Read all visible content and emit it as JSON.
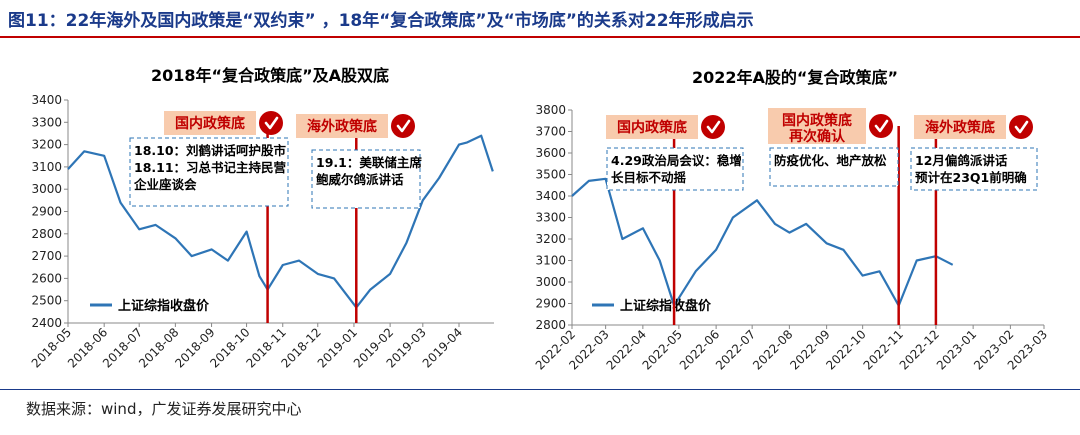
{
  "figure": {
    "title": "图11：22年海外及国内政策是“双约束” ，18年“复合政策底”及“市场底”的关系对22年形成启示",
    "source": "数据来源：wind，广发证券发展研究中心"
  },
  "colors": {
    "line": "#2e75b6",
    "marker": "#c00000",
    "label_bg": "#f8cbad",
    "label_text": "#c00000",
    "title": "#1a3a8a"
  },
  "icons": [
    "check-circle-icon"
  ],
  "chart_data": [
    {
      "type": "line",
      "title": "2018年“复合政策底”及A股双底",
      "series": [
        {
          "name": "上证综指收盘价",
          "x": [
            "2018-05-01",
            "2018-05-15",
            "2018-06-01",
            "2018-06-15",
            "2018-07-01",
            "2018-07-15",
            "2018-08-01",
            "2018-08-15",
            "2018-09-01",
            "2018-09-15",
            "2018-10-01",
            "2018-10-12",
            "2018-10-19",
            "2018-11-01",
            "2018-11-15",
            "2018-12-01",
            "2018-12-15",
            "2019-01-03",
            "2019-01-15",
            "2019-02-01",
            "2019-02-15",
            "2019-03-01",
            "2019-03-15",
            "2019-04-01",
            "2019-04-08",
            "2019-04-20",
            "2019-04-30"
          ],
          "y": [
            3090,
            3170,
            3150,
            2940,
            2820,
            2840,
            2780,
            2700,
            2730,
            2680,
            2810,
            2610,
            2550,
            2660,
            2680,
            2620,
            2600,
            2470,
            2550,
            2620,
            2760,
            2950,
            3050,
            3200,
            3210,
            3240,
            3080
          ]
        }
      ],
      "yticks": [
        2400,
        2500,
        2600,
        2700,
        2800,
        2900,
        3000,
        3100,
        3200,
        3300,
        3400
      ],
      "xticks": [
        "2018-05",
        "2018-06",
        "2018-07",
        "2018-08",
        "2018-09",
        "2018-10",
        "2018-11",
        "2018-12",
        "2019-01",
        "2019-02",
        "2019-03",
        "2019-04"
      ],
      "ylim": [
        2400,
        3400
      ],
      "events": [
        {
          "label": "国内政策底",
          "date": "2018-10-19",
          "note_lines": [
            "18.10：刘鹤讲话呵护股市",
            "18.11：习总书记主持民营",
            "企业座谈会"
          ]
        },
        {
          "label": "海外政策底",
          "date": "2019-01-03",
          "note_lines": [
            "19.1：美联储主席",
            "鲍威尔鸽派讲话"
          ]
        }
      ],
      "legend": "bottom-left"
    },
    {
      "type": "line",
      "title": "2022年A股的“复合政策底”",
      "series": [
        {
          "name": "上证综指收盘价",
          "x": [
            "2022-02-01",
            "2022-02-15",
            "2022-03-01",
            "2022-03-15",
            "2022-04-01",
            "2022-04-15",
            "2022-04-27",
            "2022-05-15",
            "2022-06-01",
            "2022-06-15",
            "2022-07-05",
            "2022-07-20",
            "2022-08-01",
            "2022-08-15",
            "2022-09-01",
            "2022-09-15",
            "2022-10-01",
            "2022-10-15",
            "2022-10-31",
            "2022-11-15",
            "2022-12-01",
            "2022-12-15"
          ],
          "y": [
            3400,
            3470,
            3480,
            3200,
            3250,
            3100,
            2890,
            3050,
            3150,
            3300,
            3380,
            3270,
            3230,
            3270,
            3180,
            3150,
            3030,
            3050,
            2890,
            3100,
            3120,
            3080
          ]
        }
      ],
      "yticks": [
        2800,
        2900,
        3000,
        3100,
        3200,
        3300,
        3400,
        3500,
        3600,
        3700,
        3800
      ],
      "xticks": [
        "2022-02",
        "2022-03",
        "2022-04",
        "2022-05",
        "2022-06",
        "2022-07",
        "2022-08",
        "2022-09",
        "2022-10",
        "2022-11",
        "2022-12",
        "2023-01",
        "2023-02",
        "2023-03"
      ],
      "ylim": [
        2800,
        3800
      ],
      "events": [
        {
          "label": "国内政策底",
          "date": "2022-04-27",
          "note_lines": [
            "4.29政治局会议：稳增",
            "长目标不动摇"
          ]
        },
        {
          "label": "国内政策底 再次确认",
          "date": "2022-10-31",
          "note_lines": [
            "防疫优化、地产放松"
          ]
        },
        {
          "label": "海外政策底",
          "date": "2022-12-01",
          "note_lines": [
            "12月偏鸽派讲话",
            "预计在23Q1前明确"
          ]
        }
      ],
      "legend": "bottom-left"
    }
  ]
}
